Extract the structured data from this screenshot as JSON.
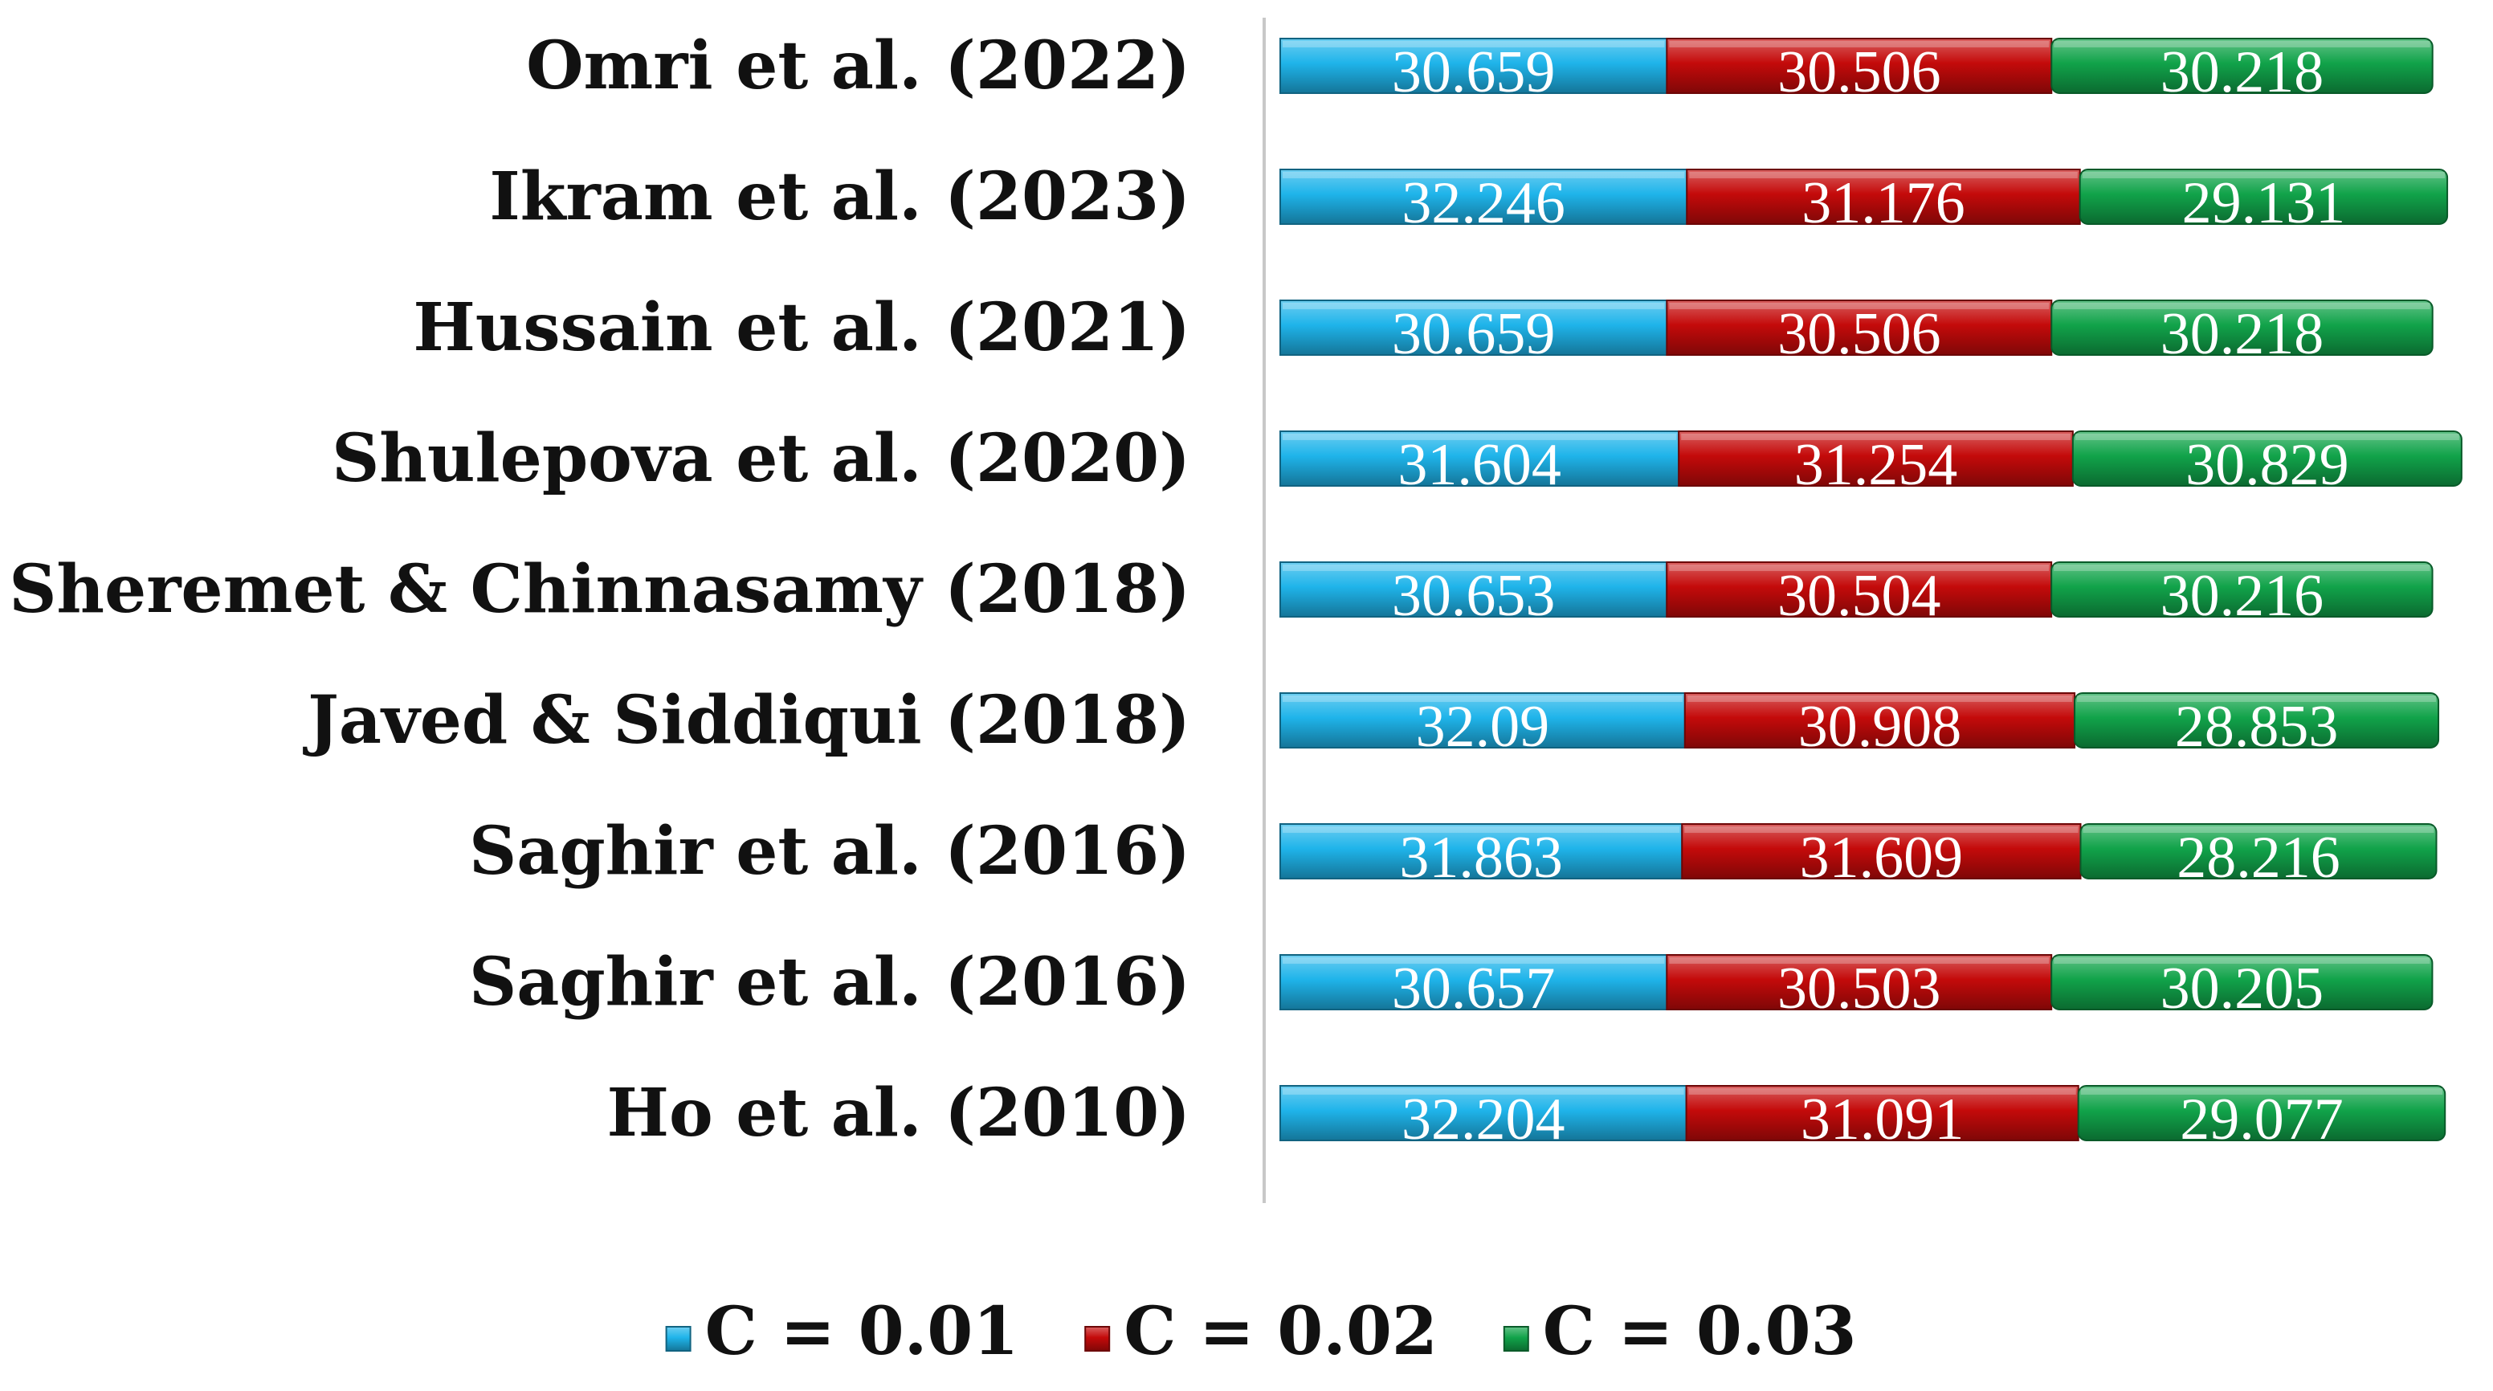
{
  "chart_data": {
    "type": "bar",
    "stacked": true,
    "orientation": "horizontal",
    "categories": [
      "Omri et al. (2022)",
      "Ikram et al. (2023)",
      "Hussain et al. (2021)",
      "Shulepova et al. (2020)",
      "Sheremet & Chinnasamy (2018)",
      "Javed & Siddiqui (2018)",
      "Saghir et al. (2016)",
      "Saghir et al. (2016)",
      "Ho et al. (2010)"
    ],
    "series": [
      {
        "name": "C = 0.01",
        "color": "#1fb4ea",
        "values": [
          30.659,
          32.246,
          30.659,
          31.604,
          30.653,
          32.09,
          31.863,
          30.657,
          32.204
        ],
        "labels": [
          "30.659",
          "32.246",
          "30.659",
          "31.604",
          "30.653",
          "32.09",
          "31.863",
          "30.657",
          "32.204"
        ]
      },
      {
        "name": "C = 0.02",
        "color": "#c40a0a",
        "values": [
          30.506,
          31.176,
          30.506,
          31.254,
          30.504,
          30.908,
          31.609,
          30.503,
          31.091
        ],
        "labels": [
          "30.506",
          "31.176",
          "30.506",
          "31.254",
          "30.504",
          "30.908",
          "31.609",
          "30.503",
          "31.091"
        ]
      },
      {
        "name": "C = 0.03",
        "color": "#11a34a",
        "values": [
          30.218,
          29.131,
          30.218,
          30.829,
          30.216,
          28.853,
          28.216,
          30.205,
          29.077
        ],
        "labels": [
          "30.218",
          "29.131",
          "30.218",
          "30.829",
          "30.216",
          "28.853",
          "28.216",
          "30.205",
          "29.077"
        ]
      }
    ],
    "title": "",
    "xlabel": "",
    "ylabel": "",
    "legend": "bottom",
    "grid": false,
    "data_labels": true
  }
}
